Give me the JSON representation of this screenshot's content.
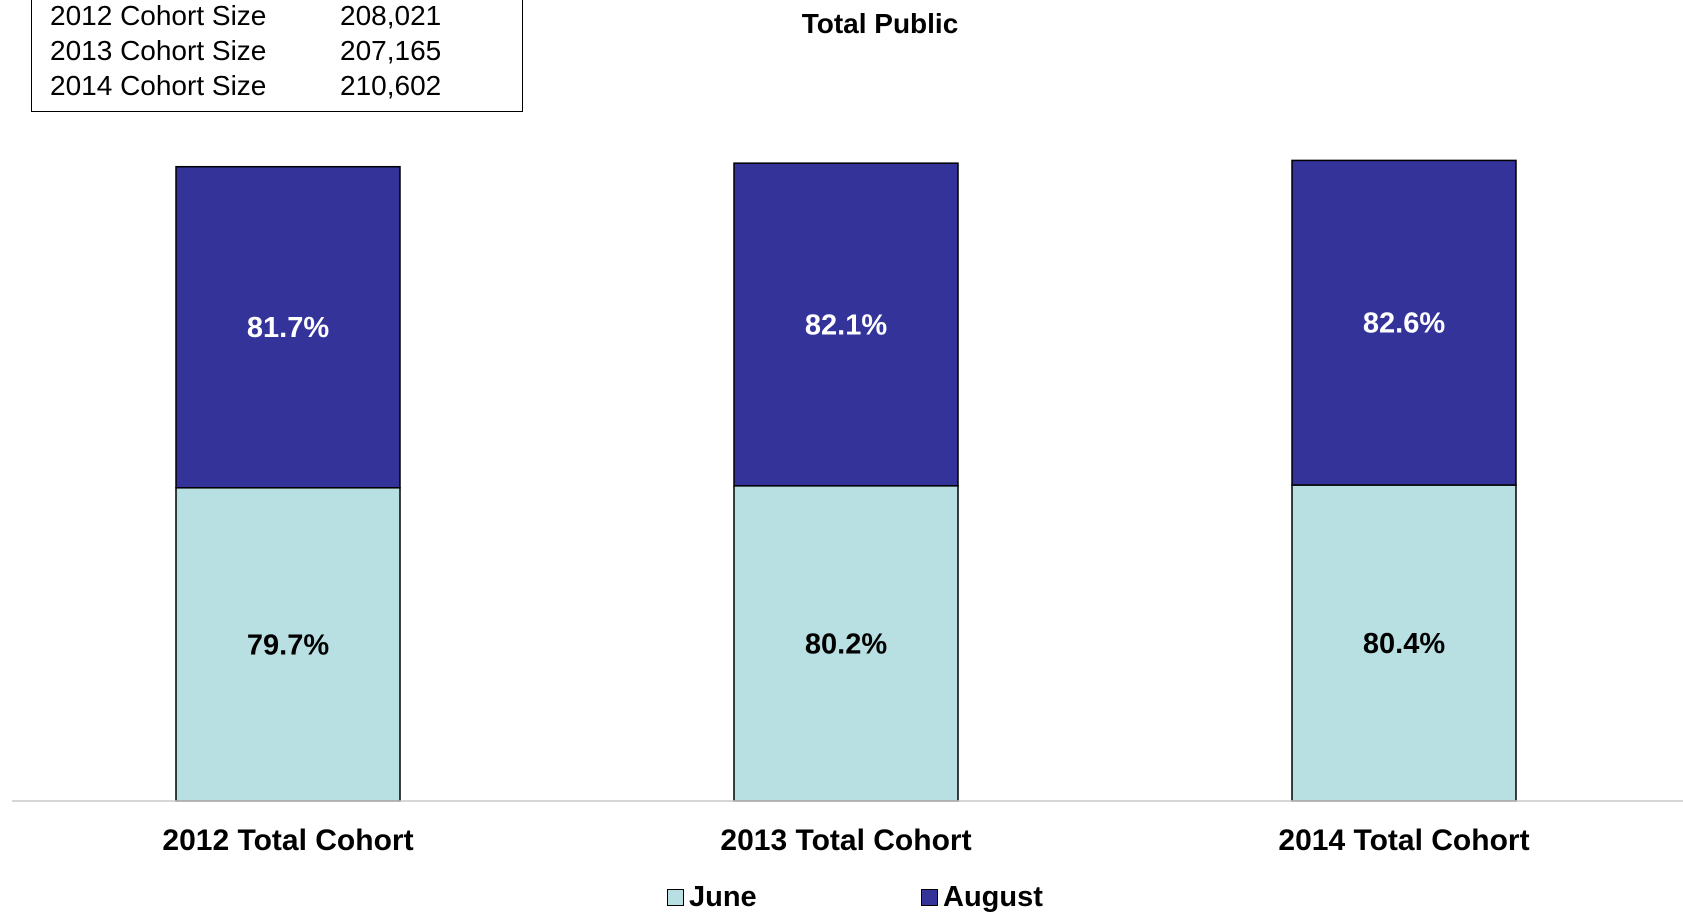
{
  "cohort_sizes": [
    {
      "label": "2012 Cohort Size",
      "value": "208,021"
    },
    {
      "label": "2013 Cohort Size",
      "value": "207,165"
    },
    {
      "label": "2014 Cohort Size",
      "value": "210,602"
    }
  ],
  "colors": {
    "june": "#B8DFE1",
    "august": "#333399",
    "axis": "#C8C8C8"
  },
  "chart_data": {
    "type": "bar",
    "stacked": true,
    "title": "Total Public",
    "categories": [
      "2012 Total Cohort",
      "2013 Total Cohort",
      "2014 Total Cohort"
    ],
    "series": [
      {
        "name": "June",
        "values": [
          79.7,
          80.2,
          80.4
        ],
        "labels": [
          "79.7%",
          "80.2%",
          "80.4%"
        ]
      },
      {
        "name": "August",
        "values": [
          81.7,
          82.1,
          82.6
        ],
        "labels": [
          "81.7%",
          "82.1%",
          "82.6%"
        ]
      }
    ],
    "legend_position": "bottom",
    "grid": false
  }
}
